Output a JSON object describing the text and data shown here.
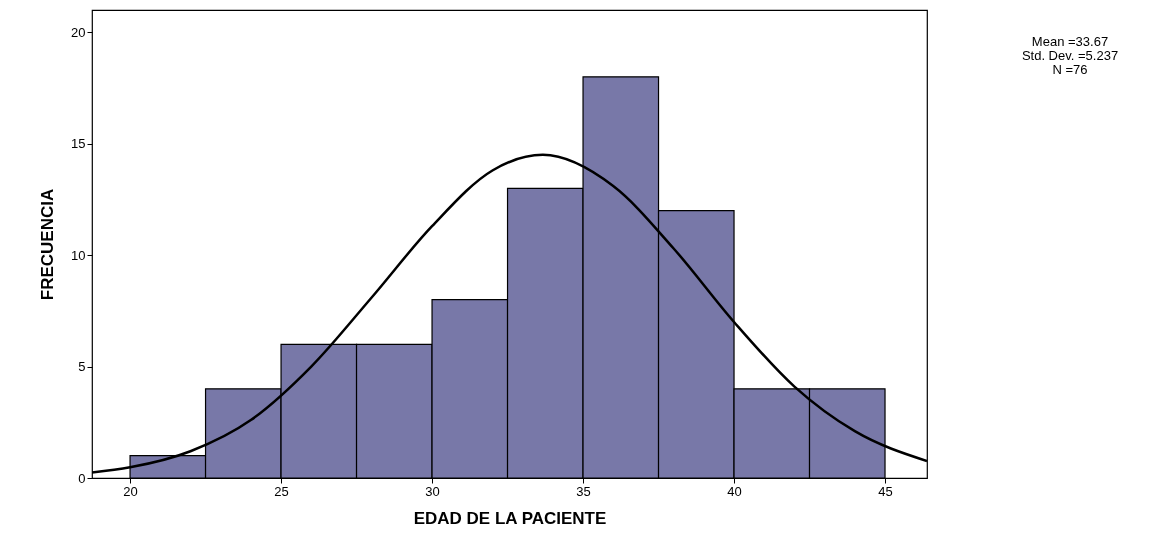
{
  "chart_data": {
    "type": "histogram",
    "xlabel": "EDAD DE LA PACIENTE",
    "ylabel": "FRECUENCIA",
    "bins": [
      20,
      22.5,
      25,
      27.5,
      30,
      32.5,
      35,
      37.5,
      40,
      42.5,
      45
    ],
    "values": [
      1,
      4,
      6,
      6,
      8,
      13,
      18,
      12,
      4,
      4
    ],
    "color": "#7878a8",
    "series": [
      {
        "type": "line",
        "color": "#000000",
        "x": [
          18.74,
          20,
          22,
          24,
          26,
          28,
          30,
          32,
          33.67,
          36,
          38,
          40,
          42,
          44,
          46.39
        ],
        "values": [
          0.25,
          0.48,
          1.2,
          2.6,
          5.0,
          8.1,
          11.3,
          13.8,
          14.5,
          13.1,
          10.3,
          7.0,
          4.1,
          2.1,
          0.76
        ]
      }
    ],
    "xlim": [
      18.74,
      46.39
    ],
    "xticks": [
      20,
      25,
      30,
      35,
      40,
      45
    ],
    "ylim": [
      0,
      21
    ],
    "yticks": [
      0,
      5,
      10,
      15,
      20
    ],
    "grid": false,
    "annotations": [
      "Mean =33.67",
      "Std. Dev. =5.237",
      "N =76"
    ]
  }
}
